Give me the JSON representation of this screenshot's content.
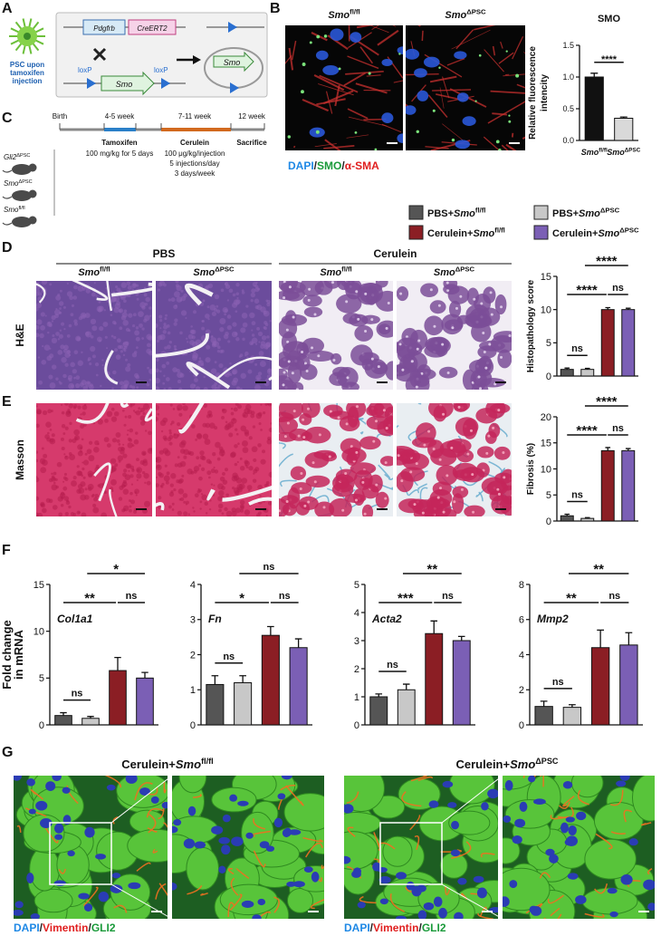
{
  "panel_labels": [
    "A",
    "B",
    "C",
    "D",
    "E",
    "F",
    "G"
  ],
  "panel_a": {
    "cell_label": [
      "PSC upon",
      "tamoxifen",
      "injection"
    ],
    "gene1": "Pdgfrb",
    "gene2": "CreERT2",
    "loxp_left": "loxP",
    "loxp_right": "loxP",
    "smo": "Smo",
    "smo_recombined": "Smo"
  },
  "panel_b": {
    "image_labels": [
      {
        "base": "Smo",
        "sup": "fl/fl"
      },
      {
        "base": "Smo",
        "sup": "ΔPSC"
      }
    ],
    "stain": [
      {
        "text": "DAPI",
        "color": "#1e88e5"
      },
      {
        "text": "/",
        "color": "#222222"
      },
      {
        "text": "SMO",
        "color": "#1a9a3a"
      },
      {
        "text": "/",
        "color": "#222222"
      },
      {
        "text": "α-SMA",
        "color": "#e02020"
      }
    ]
  },
  "panel_c": {
    "timepoints": [
      "Birth",
      "4-5 week",
      "7-11 week",
      "12 week"
    ],
    "tamoxifen": "Tamoxifen",
    "tamoxifen_dose": "100 mg/kg for 5 days",
    "cerulein": "Cerulein",
    "cerulein_dose": [
      "100 μg/kg/injection",
      "5 injections/day",
      "3 days/week"
    ],
    "sacrifice": "Sacrifice",
    "mice": [
      {
        "base": "Gli2",
        "sup": "ΔPSC"
      },
      {
        "base": "Smo",
        "sup": "ΔPSC"
      },
      {
        "base": "Smo",
        "sup": "fl/fl"
      }
    ]
  },
  "legend": [
    {
      "prefix": "PBS+",
      "italic": "Smo",
      "sup": "fl/fl",
      "color": "#555555"
    },
    {
      "prefix": "PBS+",
      "italic": "Smo",
      "sup": "ΔPSC",
      "color": "#c8c8c8"
    },
    {
      "prefix": "Cerulein+",
      "italic": "Smo",
      "sup": "fl/fl",
      "color": "#8b1e24"
    },
    {
      "prefix": "Cerulein+",
      "italic": "Smo",
      "sup": "ΔPSC",
      "color": "#7b5fb5"
    }
  ],
  "panel_d": {
    "groups": [
      "PBS",
      "Cerulein"
    ],
    "columns": [
      {
        "base": "Smo",
        "sup": "fl/fl"
      },
      {
        "base": "Smo",
        "sup": "ΔPSC"
      },
      {
        "base": "Smo",
        "sup": "fl/fl"
      },
      {
        "base": "Smo",
        "sup": "ΔPSC"
      }
    ],
    "rows": [
      "H&E",
      "Masson"
    ]
  },
  "panel_g": {
    "titles": [
      {
        "prefix": "Cerulein+",
        "italic": "Smo",
        "sup": "fl/fl"
      },
      {
        "prefix": "Cerulein+",
        "italic": "Smo",
        "sup": "ΔPSC"
      }
    ],
    "stain": [
      {
        "text": "DAPI",
        "color": "#1e88e5"
      },
      {
        "text": "/",
        "color": "#222222"
      },
      {
        "text": "Vimentin",
        "color": "#e02020"
      },
      {
        "text": "/",
        "color": "#222222"
      },
      {
        "text": "GLI2",
        "color": "#1a9a3a"
      }
    ]
  },
  "chart_data": [
    {
      "type": "bar",
      "title": "SMO",
      "ylabel": [
        "Relative fluorescence",
        "intencity"
      ],
      "categories": [
        {
          "base": "Smo",
          "sup": "fl/fl"
        },
        {
          "base": "Smo",
          "sup": "ΔPSC"
        }
      ],
      "values": [
        1.0,
        0.35
      ],
      "errors": [
        0.06,
        0.02
      ],
      "colors": [
        "#111111",
        "#d9d9d9"
      ],
      "ylim": [
        0,
        1.5
      ],
      "yticks": [
        {
          "value": 0,
          "label": "0.0"
        },
        0.5,
        {
          "value": 1,
          "label": "1.0"
        },
        1.5
      ],
      "comparisons": [
        {
          "groups": [
            0,
            1
          ],
          "label": "****"
        }
      ]
    },
    {
      "type": "bar",
      "ylabel": [
        "Histopathology score"
      ],
      "values": [
        1.0,
        1.0,
        10.0,
        10.0
      ],
      "errors": [
        0.2,
        0.15,
        0.3,
        0.2
      ],
      "colors": [
        "#555555",
        "#c8c8c8",
        "#8b1e24",
        "#7b5fb5"
      ],
      "ylim": [
        0,
        15
      ],
      "yticks": [
        0,
        5,
        10,
        15
      ],
      "comparisons": [
        {
          "groups": [
            0,
            1
          ],
          "label": "ns"
        },
        {
          "groups": [
            0,
            2
          ],
          "label": "****"
        },
        {
          "groups": [
            2,
            3
          ],
          "label": "ns"
        },
        {
          "groups": [
            1,
            3
          ],
          "label": "****"
        }
      ]
    },
    {
      "type": "bar",
      "ylabel": [
        "Fibrosis (%)"
      ],
      "values": [
        1.0,
        0.5,
        13.5,
        13.5
      ],
      "errors": [
        0.3,
        0.15,
        0.6,
        0.4
      ],
      "colors": [
        "#555555",
        "#c8c8c8",
        "#8b1e24",
        "#7b5fb5"
      ],
      "ylim": [
        0,
        20
      ],
      "yticks": [
        0,
        5,
        10,
        15,
        20
      ],
      "comparisons": [
        {
          "groups": [
            0,
            1
          ],
          "label": "ns"
        },
        {
          "groups": [
            0,
            2
          ],
          "label": "****"
        },
        {
          "groups": [
            2,
            3
          ],
          "label": "ns"
        },
        {
          "groups": [
            1,
            3
          ],
          "label": "****"
        }
      ]
    },
    {
      "type": "bar",
      "gene": "Col1a1",
      "ylabel": [
        "Fold change",
        "in mRNA"
      ],
      "values": [
        1.0,
        0.7,
        5.8,
        5.0
      ],
      "errors": [
        0.3,
        0.2,
        1.4,
        0.6
      ],
      "colors": [
        "#555555",
        "#c8c8c8",
        "#8b1e24",
        "#7b5fb5"
      ],
      "ylim": [
        0,
        15
      ],
      "yticks": [
        0,
        5,
        10,
        15
      ],
      "comparisons": [
        {
          "groups": [
            0,
            1
          ],
          "label": "ns"
        },
        {
          "groups": [
            0,
            2
          ],
          "label": "**"
        },
        {
          "groups": [
            2,
            3
          ],
          "label": "ns"
        },
        {
          "groups": [
            1,
            3
          ],
          "label": "*"
        }
      ]
    },
    {
      "type": "bar",
      "gene": "Fn",
      "values": [
        1.15,
        1.2,
        2.55,
        2.2
      ],
      "errors": [
        0.25,
        0.2,
        0.25,
        0.25
      ],
      "colors": [
        "#555555",
        "#c8c8c8",
        "#8b1e24",
        "#7b5fb5"
      ],
      "ylim": [
        0,
        4
      ],
      "yticks": [
        0,
        1,
        2,
        3,
        4
      ],
      "comparisons": [
        {
          "groups": [
            0,
            1
          ],
          "label": "ns"
        },
        {
          "groups": [
            0,
            2
          ],
          "label": "*"
        },
        {
          "groups": [
            2,
            3
          ],
          "label": "ns"
        },
        {
          "groups": [
            1,
            3
          ],
          "label": "ns"
        }
      ]
    },
    {
      "type": "bar",
      "gene": "Acta2",
      "values": [
        1.0,
        1.25,
        3.25,
        3.0
      ],
      "errors": [
        0.1,
        0.2,
        0.45,
        0.15
      ],
      "colors": [
        "#555555",
        "#c8c8c8",
        "#8b1e24",
        "#7b5fb5"
      ],
      "ylim": [
        0,
        5
      ],
      "yticks": [
        0,
        1,
        2,
        3,
        4,
        5
      ],
      "comparisons": [
        {
          "groups": [
            0,
            1
          ],
          "label": "ns"
        },
        {
          "groups": [
            0,
            2
          ],
          "label": "***"
        },
        {
          "groups": [
            2,
            3
          ],
          "label": "ns"
        },
        {
          "groups": [
            1,
            3
          ],
          "label": "**"
        }
      ]
    },
    {
      "type": "bar",
      "gene": "Mmp2",
      "values": [
        1.05,
        1.0,
        4.4,
        4.55
      ],
      "errors": [
        0.3,
        0.15,
        1.0,
        0.7
      ],
      "colors": [
        "#555555",
        "#c8c8c8",
        "#8b1e24",
        "#7b5fb5"
      ],
      "ylim": [
        0,
        8
      ],
      "yticks": [
        0,
        2,
        4,
        6,
        8
      ],
      "comparisons": [
        {
          "groups": [
            0,
            1
          ],
          "label": "ns"
        },
        {
          "groups": [
            0,
            2
          ],
          "label": "**"
        },
        {
          "groups": [
            2,
            3
          ],
          "label": "ns"
        },
        {
          "groups": [
            1,
            3
          ],
          "label": "**"
        }
      ]
    }
  ]
}
